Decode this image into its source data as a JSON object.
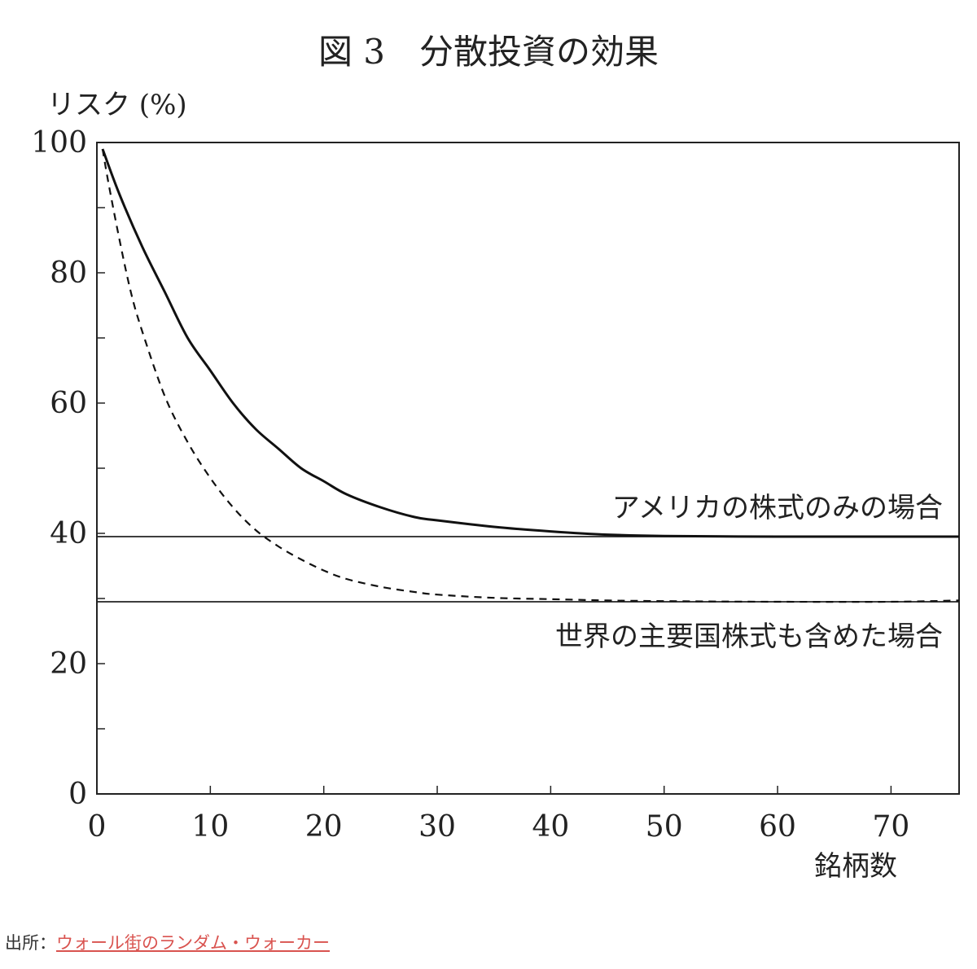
{
  "chart_data": {
    "type": "line",
    "title": "図 3　分散投資の効果",
    "ylabel": "リスク (%)",
    "xlabel": "銘柄数",
    "xlim": [
      0,
      76
    ],
    "ylim": [
      0,
      100
    ],
    "x_ticks": [
      0,
      10,
      20,
      30,
      40,
      50,
      60,
      70
    ],
    "y_ticks": [
      0,
      20,
      40,
      60,
      80,
      100
    ],
    "grid": false,
    "series": [
      {
        "name": "アメリカの株式のみの場合",
        "style": "solid",
        "asymptote": 39.5,
        "x": [
          0.5,
          2,
          4,
          6,
          8,
          10,
          12,
          14,
          16,
          18,
          20,
          22,
          25,
          28,
          30,
          35,
          40,
          45,
          50,
          60,
          70,
          76
        ],
        "y": [
          99,
          92,
          84,
          77,
          70,
          65,
          60,
          56,
          53,
          50,
          48,
          46,
          44,
          42.5,
          42,
          41,
          40.3,
          39.8,
          39.6,
          39.5,
          39.5,
          39.5
        ]
      },
      {
        "name": "世界の主要国株式も含めた場合",
        "style": "dashed",
        "asymptote": 29.5,
        "x": [
          0.5,
          1,
          2,
          3,
          4,
          6,
          8,
          10,
          12,
          14,
          16,
          18,
          20,
          22,
          25,
          28,
          30,
          35,
          40,
          45,
          50,
          60,
          70,
          76
        ],
        "y": [
          99,
          94,
          85,
          77,
          71,
          61,
          54,
          48.5,
          44,
          40.5,
          38,
          36,
          34.3,
          33,
          31.8,
          31,
          30.6,
          30.1,
          29.9,
          29.7,
          29.6,
          29.5,
          29.5,
          29.7
        ]
      }
    ]
  },
  "source": {
    "prefix": "出所：",
    "link_text": "ウォール街のランダム・ウォーカー"
  }
}
